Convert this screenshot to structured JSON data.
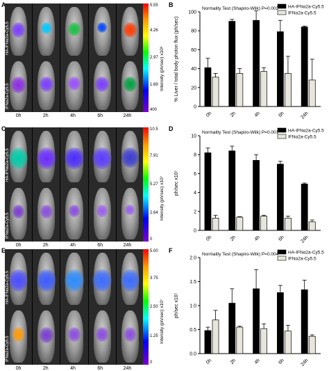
{
  "panels": {
    "A": "A",
    "B": "B",
    "C": "C",
    "D": "D",
    "E": "E",
    "F": "F"
  },
  "images": [
    {
      "row_labels": [
        "HA-IFNα2a-Cy5.5",
        "IFNα2a-Cy5.5"
      ],
      "time_labels": [
        "0h",
        "2h",
        "4h",
        "6h",
        "24h"
      ],
      "colorbar_ticks": [
        "5.55",
        "4.26",
        "2.97",
        "1.69",
        "400"
      ],
      "colorbar_title": "Intensity (ph/sec) x10⁸"
    },
    {
      "row_labels": [
        "HA-IFNα2a-Cy5.5",
        "IFNα2a-Cy5.5"
      ],
      "time_labels": [
        "0h",
        "2h",
        "4h",
        "6h",
        "24h"
      ],
      "colorbar_ticks": [
        "10.5",
        "7.91",
        "5.27",
        "2.64",
        "0"
      ],
      "colorbar_title": "Intensity (ph/sec) x10⁷"
    },
    {
      "row_labels": [
        "HA-IFNα2a-Cy5.5",
        "IFNα2a-Cy5.5"
      ],
      "time_labels": [
        "0h",
        "2h",
        "4h",
        "6h",
        "24h"
      ],
      "colorbar_ticks": [
        "5.00",
        "3.75",
        "2.50",
        "1.25",
        "0"
      ],
      "colorbar_title": "Intensity (ph/sec) x10⁷"
    }
  ],
  "chart_data": [
    {
      "type": "bar",
      "annotation": "Normality Test (Shapiro-Wilk) P=0.002",
      "categories": [
        "0h",
        "2h",
        "4h",
        "6h",
        "24h"
      ],
      "ylabel": "% Liver / total body photon flux (ph/sec)",
      "ylim": [
        0,
        100
      ],
      "yticks": [
        "0",
        "20",
        "40",
        "60",
        "80",
        "100"
      ],
      "series": [
        {
          "name": "HA-IFNα2a-Cy5.5",
          "color": "#000000",
          "values": [
            41,
            90,
            91,
            79,
            84
          ],
          "err": [
            10,
            2,
            10,
            12,
            1
          ]
        },
        {
          "name": "IFNα2a-Cy5.5",
          "color": "#e8e6dc",
          "values": [
            31,
            35,
            37,
            35,
            28
          ],
          "err": [
            4,
            5,
            4,
            18,
            22
          ]
        }
      ]
    },
    {
      "type": "bar",
      "annotation": "Normality Test (Shapiro-Wilk) P=0.001",
      "categories": [
        "0h",
        "2h",
        "4h",
        "6h",
        "24h"
      ],
      "ylabel": "ph/sec x10⁷",
      "ylim": [
        0,
        10
      ],
      "yticks": [
        "0",
        "2",
        "4",
        "6",
        "8",
        "10"
      ],
      "series": [
        {
          "name": "HA-IFNα2a-Cy5.5",
          "color": "#000000",
          "values": [
            8.2,
            8.4,
            7.4,
            7.0,
            4.9
          ],
          "err": [
            0.5,
            0.5,
            0.6,
            0.3,
            0.1
          ]
        },
        {
          "name": "IFNα2a-Cy5.5",
          "color": "#e8e6dc",
          "values": [
            1.3,
            1.4,
            1.5,
            1.3,
            0.9
          ],
          "err": [
            0.3,
            0.05,
            0.1,
            0.2,
            0.2
          ]
        }
      ]
    },
    {
      "type": "bar",
      "annotation": "Normality Test (Shapiro-Wilk) P=0.004",
      "categories": [
        "0h",
        "2h",
        "4h",
        "6h",
        "24h"
      ],
      "ylabel": "ph/sec x10⁷",
      "ylim": [
        0,
        2.0
      ],
      "yticks": [
        "0.0",
        "0.5",
        "1.0",
        "1.5",
        "2.0"
      ],
      "series": [
        {
          "name": "HA-IFNα2a-Cy5.5",
          "color": "#000000",
          "values": [
            0.48,
            1.05,
            1.35,
            1.27,
            1.33
          ],
          "err": [
            0.07,
            0.3,
            0.4,
            0.15,
            0.2
          ]
        },
        {
          "name": "IFNα2a-Cy5.5",
          "color": "#e8e6dc",
          "values": [
            0.7,
            0.55,
            0.52,
            0.47,
            0.36
          ],
          "err": [
            0.2,
            0.02,
            0.1,
            0.12,
            0.03
          ]
        }
      ]
    }
  ]
}
